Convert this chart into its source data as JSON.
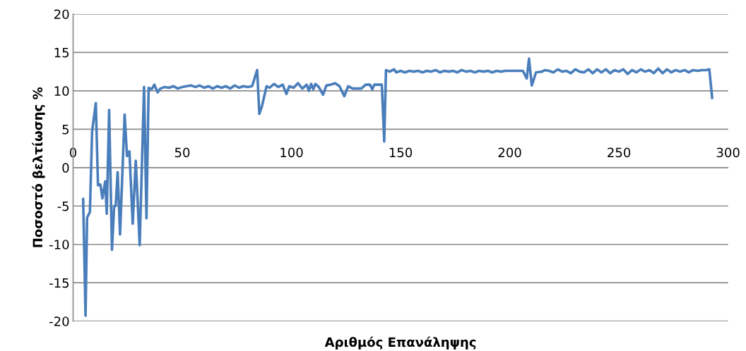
{
  "chart_data": {
    "type": "line",
    "xlabel": "Αριθμός Επανάληψης",
    "ylabel": "Ποσοστό βελτίωσης %",
    "xlim": [
      0,
      300
    ],
    "xticks": [
      0,
      50,
      100,
      150,
      200,
      250,
      300
    ],
    "ylim": [
      -20,
      20
    ],
    "yticks": [
      -20,
      -15,
      -10,
      -5,
      0,
      5,
      10,
      15,
      20
    ],
    "grid": "y",
    "marker": "none",
    "line_style": "solid",
    "series": [
      {
        "color": "#4a7ebb",
        "x": [
          4.6,
          5.7,
          6.4,
          7.7,
          8.7,
          10.4,
          11.4,
          12.5,
          13.4,
          14.7,
          15.4,
          16.5,
          17.8,
          18.8,
          19.5,
          20.4,
          21.5,
          23.6,
          24.7,
          25.8,
          27.3,
          28.7,
          30.5,
          32.5,
          33.6,
          34.6,
          36,
          37.2,
          38.7,
          40,
          42,
          44,
          46,
          48,
          50,
          52,
          54,
          56,
          58,
          60,
          62,
          64,
          66,
          68,
          70,
          72,
          74,
          76,
          78,
          80,
          82,
          84.3,
          85.3,
          86.5,
          88.6,
          90,
          92,
          94,
          96,
          97.7,
          99,
          101,
          103,
          105,
          107,
          108,
          109,
          110,
          111,
          112.5,
          114.5,
          116,
          118,
          120,
          122,
          124.2,
          126,
          128,
          130,
          132,
          134,
          136,
          137,
          138,
          140,
          141.4,
          142.5,
          143.3,
          145,
          147,
          148,
          150,
          152,
          154,
          156,
          158,
          160,
          162,
          164,
          166,
          168,
          170,
          172,
          174,
          176,
          178,
          180,
          182,
          184,
          186,
          188,
          190,
          192,
          194,
          196,
          198,
          200,
          202,
          204,
          206,
          207.8,
          208.8,
          210.1,
          212,
          214.8,
          216,
          218,
          220,
          222,
          224,
          226,
          228,
          230,
          232,
          234,
          236,
          238,
          240,
          242,
          244,
          246,
          248,
          250,
          252,
          254,
          256,
          258,
          260,
          262,
          264,
          266,
          268,
          270,
          272,
          274,
          276,
          278,
          280,
          282,
          284,
          286,
          288,
          290,
          291.4,
          292.7
        ],
        "values": [
          -4.1,
          -19.3,
          -6.5,
          -5.8,
          4.7,
          8.4,
          -2.3,
          -2.2,
          -4.0,
          -1.8,
          -6.0,
          7.5,
          -10.7,
          -5.0,
          -5.0,
          -0.6,
          -8.7,
          6.9,
          1.5,
          2.1,
          -7.3,
          0.9,
          -10.1,
          10.5,
          -6.6,
          10.4,
          10.2,
          10.8,
          9.8,
          10.3,
          10.5,
          10.4,
          10.6,
          10.3,
          10.5,
          10.6,
          10.7,
          10.5,
          10.7,
          10.4,
          10.6,
          10.3,
          10.6,
          10.4,
          10.6,
          10.3,
          10.7,
          10.4,
          10.6,
          10.5,
          10.6,
          12.7,
          7.0,
          8.0,
          10.6,
          10.4,
          10.9,
          10.5,
          10.8,
          9.6,
          10.6,
          10.4,
          11.0,
          10.3,
          10.8,
          10.0,
          10.9,
          10.2,
          10.9,
          10.5,
          9.5,
          10.7,
          10.8,
          11.0,
          10.6,
          9.3,
          10.6,
          10.3,
          10.3,
          10.3,
          10.8,
          10.8,
          10.2,
          10.8,
          10.8,
          10.8,
          3.4,
          12.7,
          12.5,
          12.8,
          12.4,
          12.6,
          12.4,
          12.6,
          12.5,
          12.6,
          12.4,
          12.6,
          12.5,
          12.7,
          12.4,
          12.6,
          12.5,
          12.6,
          12.4,
          12.7,
          12.5,
          12.6,
          12.4,
          12.6,
          12.5,
          12.6,
          12.4,
          12.6,
          12.5,
          12.6,
          12.6,
          12.6,
          12.6,
          12.6,
          11.6,
          14.2,
          10.7,
          12.4,
          12.5,
          12.7,
          12.6,
          12.4,
          12.8,
          12.5,
          12.6,
          12.3,
          12.8,
          12.5,
          12.4,
          12.8,
          12.3,
          12.8,
          12.4,
          12.8,
          12.3,
          12.7,
          12.5,
          12.8,
          12.2,
          12.7,
          12.4,
          12.8,
          12.5,
          12.7,
          12.3,
          12.9,
          12.3,
          12.8,
          12.4,
          12.7,
          12.5,
          12.7,
          12.4,
          12.7,
          12.6,
          12.7,
          12.7,
          12.8,
          9.1
        ]
      }
    ]
  }
}
